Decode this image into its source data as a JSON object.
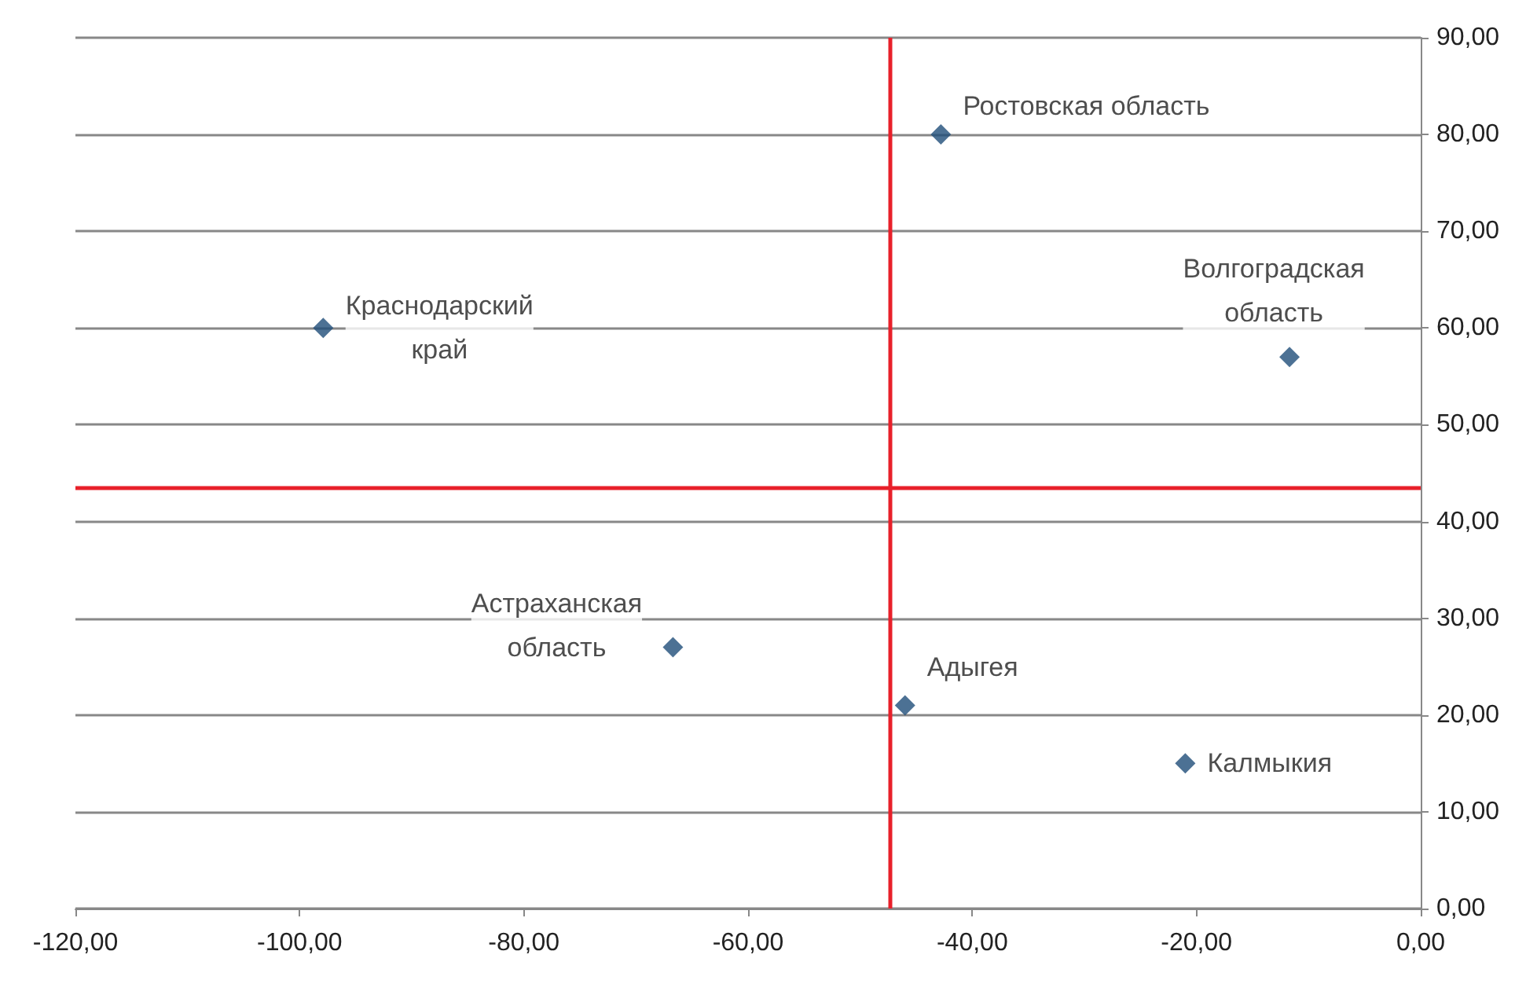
{
  "chart_data": {
    "type": "scatter",
    "marker": "diamond",
    "grid": "y",
    "x": [
      -42.8,
      -97.9,
      -11.7,
      -66.7,
      -46.0,
      -21.0
    ],
    "series": [
      {
        "color": "#1f4e79",
        "values": [
          80,
          60,
          57,
          27,
          21,
          15
        ]
      }
    ],
    "xlim": [
      -120,
      0
    ],
    "xticks": [
      {
        "value": -120,
        "label": "-120,00"
      },
      {
        "value": -100,
        "label": "-100,00"
      },
      {
        "value": -80,
        "label": "-80,00"
      },
      {
        "value": -60,
        "label": "-60,00"
      },
      {
        "value": -40,
        "label": "-40,00"
      },
      {
        "value": -20,
        "label": "-20,00"
      },
      {
        "value": 0,
        "label": "0,00"
      }
    ],
    "ylim": [
      0,
      90
    ],
    "yticks": [
      {
        "value": 0,
        "label": "0,00"
      },
      {
        "value": 10,
        "label": "10,00"
      },
      {
        "value": 20,
        "label": "20,00"
      },
      {
        "value": 30,
        "label": "30,00"
      },
      {
        "value": 40,
        "label": "40,00"
      },
      {
        "value": 50,
        "label": "50,00"
      },
      {
        "value": 60,
        "label": "60,00"
      },
      {
        "value": 70,
        "label": "70,00"
      },
      {
        "value": 80,
        "label": "80,00"
      },
      {
        "value": 90,
        "label": "90,00"
      }
    ],
    "ref_lines": [
      {
        "axis": "x",
        "value": -47.4,
        "color": "#e8202a"
      },
      {
        "axis": "y",
        "value": 43.5,
        "color": "#e8202a"
      }
    ],
    "annotations": [
      {
        "text": "Ростовская область",
        "x": -42.8,
        "y": 80
      },
      {
        "text": "Краснодарский край",
        "x": -97.9,
        "y": 60
      },
      {
        "text": "Волгоградская область",
        "x": -11.7,
        "y": 57
      },
      {
        "text": "Астраханская область",
        "x": -66.7,
        "y": 27
      },
      {
        "text": "Адыгея",
        "x": -46.0,
        "y": 21
      },
      {
        "text": "Калмыкия",
        "x": -21.0,
        "y": 15
      }
    ]
  }
}
